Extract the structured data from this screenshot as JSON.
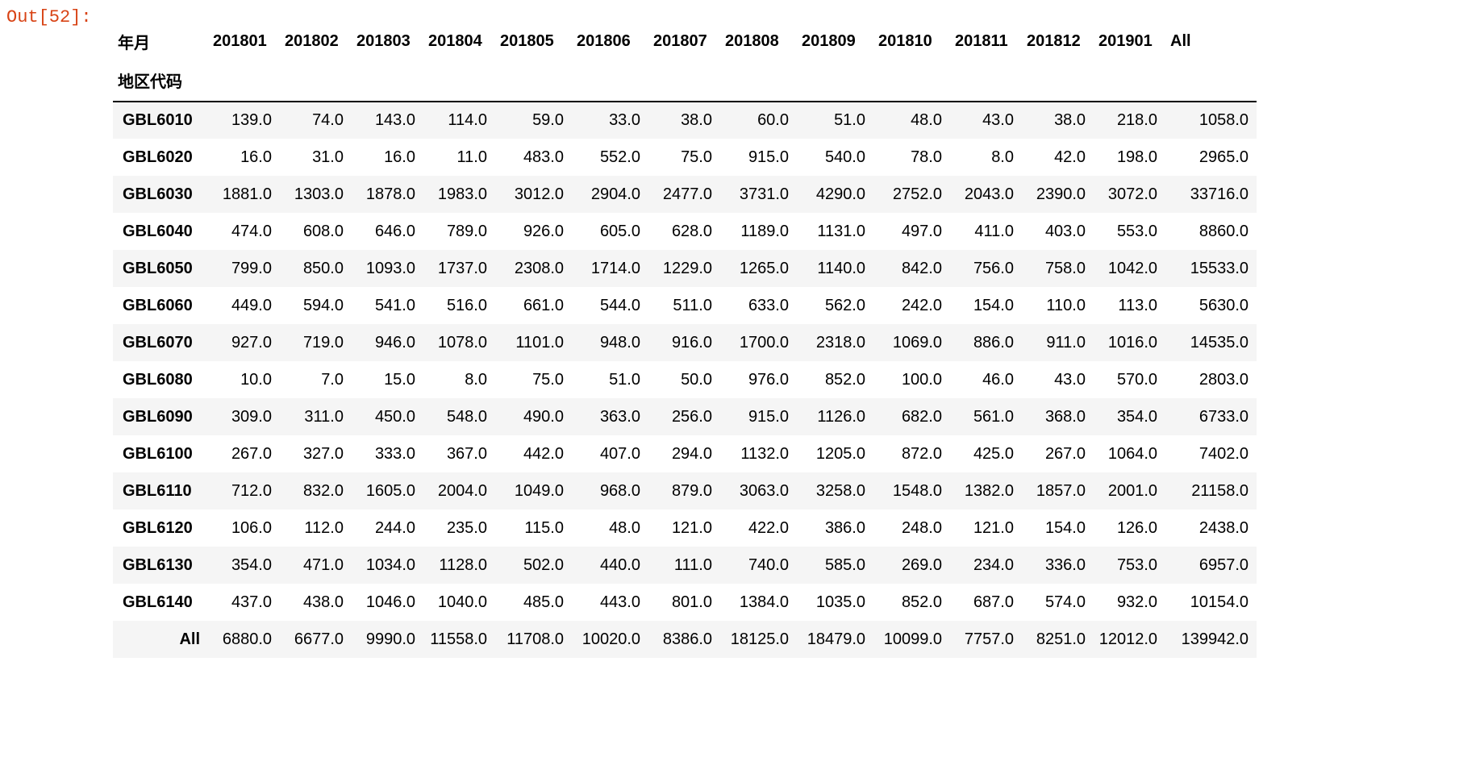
{
  "cell": {
    "prompt": "Out[52]:"
  },
  "dataframe": {
    "columns_name": "年月",
    "index_name": "地区代码",
    "columns": [
      "201801",
      "201802",
      "201803",
      "201804",
      "201805",
      "201806",
      "201807",
      "201808",
      "201809",
      "201810",
      "201811",
      "201812",
      "201901",
      "All"
    ],
    "rows": [
      {
        "label": "GBL6010",
        "values": [
          "139.0",
          "74.0",
          "143.0",
          "114.0",
          "59.0",
          "33.0",
          "38.0",
          "60.0",
          "51.0",
          "48.0",
          "43.0",
          "38.0",
          "218.0",
          "1058.0"
        ]
      },
      {
        "label": "GBL6020",
        "values": [
          "16.0",
          "31.0",
          "16.0",
          "11.0",
          "483.0",
          "552.0",
          "75.0",
          "915.0",
          "540.0",
          "78.0",
          "8.0",
          "42.0",
          "198.0",
          "2965.0"
        ]
      },
      {
        "label": "GBL6030",
        "values": [
          "1881.0",
          "1303.0",
          "1878.0",
          "1983.0",
          "3012.0",
          "2904.0",
          "2477.0",
          "3731.0",
          "4290.0",
          "2752.0",
          "2043.0",
          "2390.0",
          "3072.0",
          "33716.0"
        ]
      },
      {
        "label": "GBL6040",
        "values": [
          "474.0",
          "608.0",
          "646.0",
          "789.0",
          "926.0",
          "605.0",
          "628.0",
          "1189.0",
          "1131.0",
          "497.0",
          "411.0",
          "403.0",
          "553.0",
          "8860.0"
        ]
      },
      {
        "label": "GBL6050",
        "values": [
          "799.0",
          "850.0",
          "1093.0",
          "1737.0",
          "2308.0",
          "1714.0",
          "1229.0",
          "1265.0",
          "1140.0",
          "842.0",
          "756.0",
          "758.0",
          "1042.0",
          "15533.0"
        ]
      },
      {
        "label": "GBL6060",
        "values": [
          "449.0",
          "594.0",
          "541.0",
          "516.0",
          "661.0",
          "544.0",
          "511.0",
          "633.0",
          "562.0",
          "242.0",
          "154.0",
          "110.0",
          "113.0",
          "5630.0"
        ]
      },
      {
        "label": "GBL6070",
        "values": [
          "927.0",
          "719.0",
          "946.0",
          "1078.0",
          "1101.0",
          "948.0",
          "916.0",
          "1700.0",
          "2318.0",
          "1069.0",
          "886.0",
          "911.0",
          "1016.0",
          "14535.0"
        ]
      },
      {
        "label": "GBL6080",
        "values": [
          "10.0",
          "7.0",
          "15.0",
          "8.0",
          "75.0",
          "51.0",
          "50.0",
          "976.0",
          "852.0",
          "100.0",
          "46.0",
          "43.0",
          "570.0",
          "2803.0"
        ]
      },
      {
        "label": "GBL6090",
        "values": [
          "309.0",
          "311.0",
          "450.0",
          "548.0",
          "490.0",
          "363.0",
          "256.0",
          "915.0",
          "1126.0",
          "682.0",
          "561.0",
          "368.0",
          "354.0",
          "6733.0"
        ]
      },
      {
        "label": "GBL6100",
        "values": [
          "267.0",
          "327.0",
          "333.0",
          "367.0",
          "442.0",
          "407.0",
          "294.0",
          "1132.0",
          "1205.0",
          "872.0",
          "425.0",
          "267.0",
          "1064.0",
          "7402.0"
        ]
      },
      {
        "label": "GBL6110",
        "values": [
          "712.0",
          "832.0",
          "1605.0",
          "2004.0",
          "1049.0",
          "968.0",
          "879.0",
          "3063.0",
          "3258.0",
          "1548.0",
          "1382.0",
          "1857.0",
          "2001.0",
          "21158.0"
        ]
      },
      {
        "label": "GBL6120",
        "values": [
          "106.0",
          "112.0",
          "244.0",
          "235.0",
          "115.0",
          "48.0",
          "121.0",
          "422.0",
          "386.0",
          "248.0",
          "121.0",
          "154.0",
          "126.0",
          "2438.0"
        ]
      },
      {
        "label": "GBL6130",
        "values": [
          "354.0",
          "471.0",
          "1034.0",
          "1128.0",
          "502.0",
          "440.0",
          "111.0",
          "740.0",
          "585.0",
          "269.0",
          "234.0",
          "336.0",
          "753.0",
          "6957.0"
        ]
      },
      {
        "label": "GBL6140",
        "values": [
          "437.0",
          "438.0",
          "1046.0",
          "1040.0",
          "485.0",
          "443.0",
          "801.0",
          "1384.0",
          "1035.0",
          "852.0",
          "687.0",
          "574.0",
          "932.0",
          "10154.0"
        ]
      },
      {
        "label": "All",
        "values": [
          "6880.0",
          "6677.0",
          "9990.0",
          "11558.0",
          "11708.0",
          "10020.0",
          "8386.0",
          "18125.0",
          "18479.0",
          "10099.0",
          "7757.0",
          "8251.0",
          "12012.0",
          "139942.0"
        ]
      }
    ]
  }
}
